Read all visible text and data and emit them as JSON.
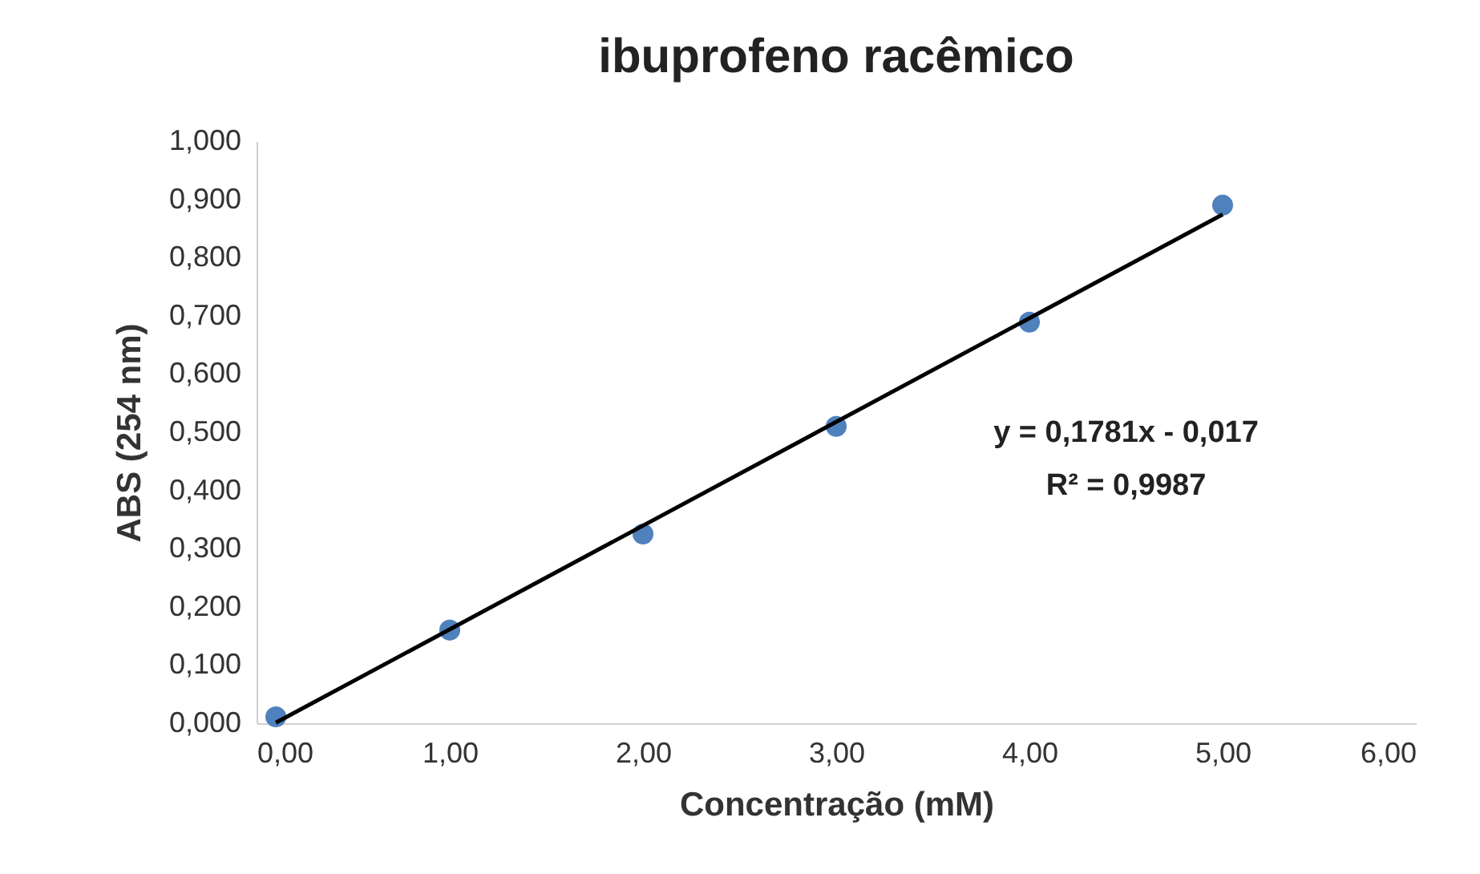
{
  "chart_data": {
    "type": "scatter",
    "title": "ibuprofeno racêmico",
    "xlabel": "Concentração (mM)",
    "ylabel": "ABS (254 nm)",
    "series": [
      {
        "type": "scatter",
        "marker": "circle",
        "color": "#4f81bd",
        "x": [
          0.1,
          1,
          2,
          3,
          4,
          5
        ],
        "values": [
          0.011,
          0.16,
          0.325,
          0.51,
          0.689,
          0.89
        ]
      },
      {
        "type": "line",
        "color": "#000000",
        "x": [
          0.1,
          5
        ],
        "values": [
          0.001,
          0.874
        ]
      }
    ],
    "xlim": [
      0,
      6
    ],
    "xticks": [
      {
        "value": 0,
        "label": "0,00"
      },
      {
        "value": 1,
        "label": "1,00"
      },
      {
        "value": 2,
        "label": "2,00"
      },
      {
        "value": 3,
        "label": "3,00"
      },
      {
        "value": 4,
        "label": "4,00"
      },
      {
        "value": 5,
        "label": "5,00"
      },
      {
        "value": 6,
        "label": "6,00"
      }
    ],
    "ylim": [
      0,
      1
    ],
    "yticks": [
      {
        "value": 0,
        "label": "0,000"
      },
      {
        "value": 0.1,
        "label": "0,100"
      },
      {
        "value": 0.2,
        "label": "0,200"
      },
      {
        "value": 0.3,
        "label": "0,300"
      },
      {
        "value": 0.4,
        "label": "0,400"
      },
      {
        "value": 0.5,
        "label": "0,500"
      },
      {
        "value": 0.6,
        "label": "0,600"
      },
      {
        "value": 0.7,
        "label": "0,700"
      },
      {
        "value": 0.8,
        "label": "0,800"
      },
      {
        "value": 0.9,
        "label": "0,900"
      },
      {
        "value": 1,
        "label": "1,000"
      }
    ],
    "annotations": [
      "y = 0,1781x - 0,017",
      "R² = 0,9987"
    ],
    "grid": false
  }
}
